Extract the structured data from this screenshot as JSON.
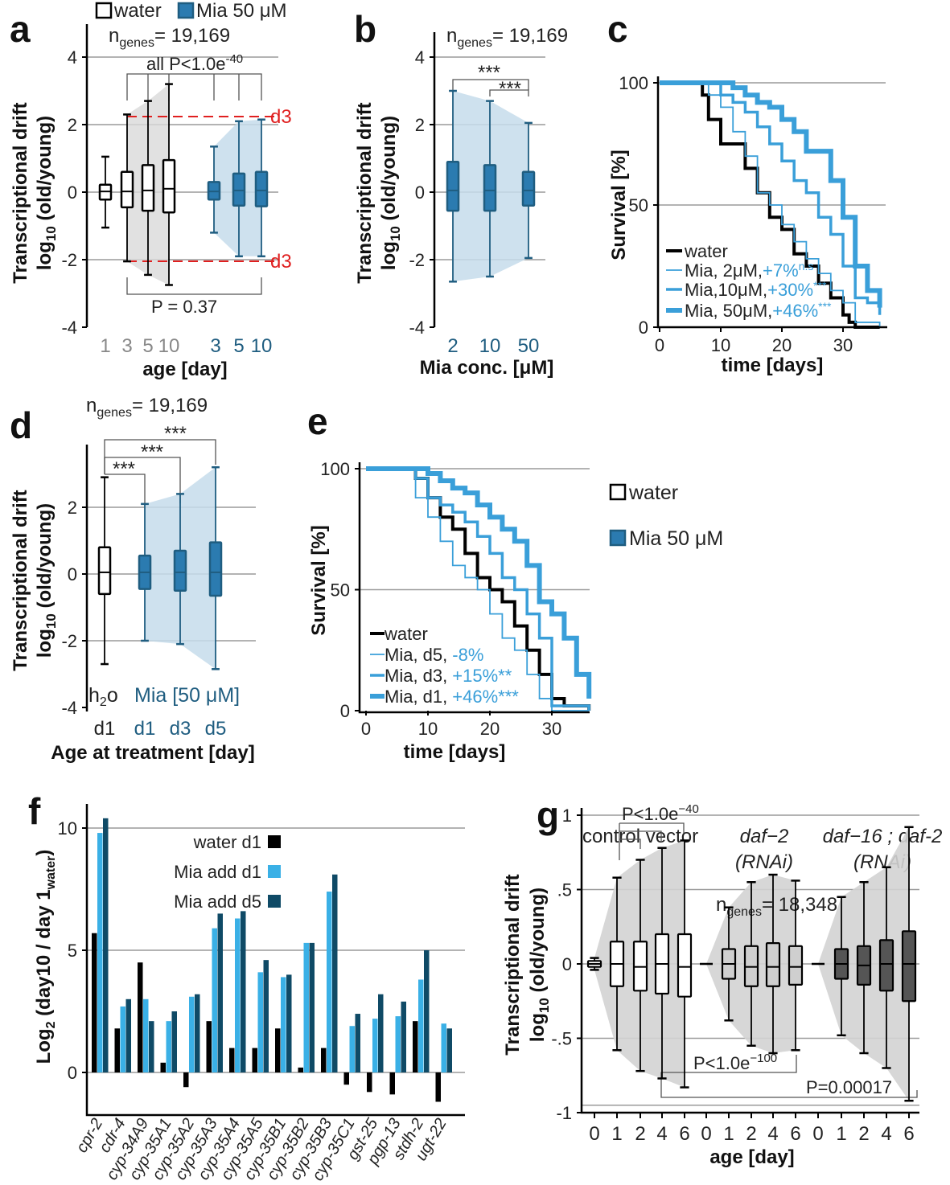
{
  "panels": {
    "a": {
      "label": "a",
      "legend": [
        "water",
        "Mia 50 μM"
      ],
      "ngenes_prefix": "n",
      "ngenes_sub": "genes",
      "ngenes_value": "= 19,169",
      "pval_top": "all P<1.0e",
      "pval_top_sup": "-40",
      "pval_bottom": "P = 0.37",
      "ref_label": "d3",
      "ylabel1": "Transcriptional drift",
      "ylabel2": "log",
      "ylabel2_sub": "10",
      "ylabel2_rest": " (old/young)",
      "xlabel": "age  [day]",
      "yticks": [
        "4",
        "2",
        "0",
        "-2",
        "-4"
      ],
      "xticks": [
        "1",
        "3",
        "5",
        "10",
        "3",
        "5",
        "10"
      ]
    },
    "b": {
      "label": "b",
      "ngenes_prefix": "n",
      "ngenes_sub": "genes",
      "ngenes_value": "= 19,169",
      "sig1": "***",
      "sig2": "***",
      "ylabel1": "Transcriptional drift",
      "ylabel2": "log",
      "ylabel2_sub": "10",
      "ylabel2_rest": " (old/young)",
      "xlabel": "Mia conc. [μM]",
      "yticks": [
        "4",
        "2",
        "0",
        "-2",
        "-4"
      ],
      "xticks": [
        "2",
        "10",
        "50"
      ]
    },
    "c": {
      "label": "c",
      "ylabel": "Survival [%]",
      "xlabel": "time [days]",
      "yticks": [
        "100",
        "50",
        "0"
      ],
      "xticks": [
        "0",
        "10",
        "20",
        "30"
      ],
      "legend": [
        {
          "name": "water",
          "stat": ""
        },
        {
          "name": "Mia, 2μM,",
          "stat": "+7%",
          "sup": "n.s"
        },
        {
          "name": "Mia,10μM,",
          "stat": "+30%",
          "sup": "***"
        },
        {
          "name": "Mia, 50μM,",
          "stat": "+46%",
          "sup": "***"
        }
      ]
    },
    "d": {
      "label": "d",
      "ngenes_prefix": "n",
      "ngenes_sub": "genes",
      "ngenes_value": "= 19,169",
      "sig": [
        "***",
        "***",
        "***"
      ],
      "ylabel1": "Transcriptional drift",
      "ylabel2": "log",
      "ylabel2_sub": "10",
      "ylabel2_rest": " (old/young)",
      "xlabel": "Age at treatment [day]",
      "yticks": [
        "2",
        "0",
        "-2",
        "-4"
      ],
      "xticks": [
        "d1",
        "d1",
        "d3",
        "d5"
      ],
      "h2o_a": "h",
      "h2o_sub": "2",
      "h2o_b": "o",
      "mia_note": "Mia [50 μM]"
    },
    "e": {
      "label": "e",
      "ylabel": "Survival [%]",
      "xlabel": "time [days]",
      "yticks": [
        "100",
        "50",
        "0"
      ],
      "xticks": [
        "0",
        "10",
        "20",
        "30"
      ],
      "legend": [
        {
          "name": "water",
          "stat": ""
        },
        {
          "name": "Mia, d5,",
          "stat": "-8%"
        },
        {
          "name": "Mia, d3,",
          "stat": "+15%**"
        },
        {
          "name": "Mia, d1,",
          "stat": "+46%***"
        }
      ],
      "side_legend": [
        "water",
        "Mia 50 μM"
      ]
    },
    "f": {
      "label": "f",
      "ylabel_a": "Log",
      "ylabel_sub": "2",
      "ylabel_b": " (day10 / day 1",
      "ylabel_sub2": "water",
      "ylabel_c": ")",
      "yticks": [
        "10",
        "5",
        "0"
      ],
      "legend": [
        "water d1",
        "Mia add d1",
        "Mia add d5"
      ]
    },
    "g": {
      "label": "g",
      "group_labels": [
        "control vector",
        "daf−2",
        "(RNAi)",
        "daf−16 ; daf-2",
        "(RNAi)"
      ],
      "ngenes_prefix": "n",
      "ngenes_sub": "genes",
      "ngenes_value": "= 18,348",
      "p1": "P<1.0e",
      "p1_sup": "−40",
      "p2": "P<1.0e",
      "p2_sup": "−100",
      "p3": "P=0.00017",
      "ylabel1": "Transcriptional drift",
      "ylabel2": "log",
      "ylabel2_sub": "10",
      "ylabel2_rest": " (old/young)",
      "xlabel": "age  [day]",
      "yticks": [
        "1",
        ".5",
        "0",
        "-.5",
        "-1"
      ],
      "xticks": [
        "0",
        "1",
        "2",
        "4",
        "6",
        "0",
        "1",
        "2",
        "4",
        "6",
        "0",
        "1",
        "2",
        "4",
        "6"
      ]
    }
  },
  "colors": {
    "water": "#ffffff",
    "mia": "#2b7bb0",
    "mia_dark": "#1f5d80",
    "light_blue": "#3a9fd9",
    "dark_teal": "#0f4a66",
    "grey_fill": "#d9d9d9",
    "blue_fill": "#c5dceb",
    "ref_red": "#e02020"
  },
  "chart_data": [
    {
      "panel": "a",
      "type": "box",
      "ylim": [
        -4,
        4
      ],
      "grid": true,
      "series": [
        {
          "name": "water",
          "categories": [
            "1",
            "3",
            "5",
            "10"
          ],
          "boxes": [
            {
              "min": -1.05,
              "q1": -0.22,
              "median": 0.02,
              "q3": 0.22,
              "max": 1.05
            },
            {
              "min": -2.05,
              "q1": -0.45,
              "median": 0.02,
              "q3": 0.6,
              "max": 2.3
            },
            {
              "min": -2.45,
              "q1": -0.55,
              "median": 0.05,
              "q3": 0.8,
              "max": 2.7
            },
            {
              "min": -2.75,
              "q1": -0.6,
              "median": 0.1,
              "q3": 0.95,
              "max": 3.2
            }
          ]
        },
        {
          "name": "Mia 50 μM",
          "categories": [
            "3",
            "5",
            "10"
          ],
          "boxes": [
            {
              "min": -1.2,
              "q1": -0.22,
              "median": 0.02,
              "q3": 0.3,
              "max": 1.35
            },
            {
              "min": -1.9,
              "q1": -0.4,
              "median": 0.05,
              "q3": 0.55,
              "max": 2.1
            },
            {
              "min": -1.9,
              "q1": -0.42,
              "median": 0.05,
              "q3": 0.6,
              "max": 2.15
            }
          ]
        }
      ]
    },
    {
      "panel": "b",
      "type": "box",
      "ylim": [
        -4,
        4
      ],
      "grid": true,
      "categories": [
        "2",
        "10",
        "50"
      ],
      "boxes": [
        {
          "min": -2.65,
          "q1": -0.55,
          "median": 0.05,
          "q3": 0.9,
          "max": 3.0
        },
        {
          "min": -2.5,
          "q1": -0.55,
          "median": 0.05,
          "q3": 0.8,
          "max": 2.7
        },
        {
          "min": -1.95,
          "q1": -0.4,
          "median": 0.05,
          "q3": 0.6,
          "max": 2.05
        }
      ]
    },
    {
      "panel": "c",
      "type": "line",
      "xlim": [
        0,
        36
      ],
      "ylim": [
        0,
        100
      ],
      "xlabel": "time [days]",
      "ylabel": "Survival [%]",
      "series": [
        {
          "name": "water",
          "x": [
            0,
            5,
            7,
            8,
            10,
            12,
            14,
            16,
            18,
            20,
            22,
            24,
            26,
            28,
            30,
            31,
            32,
            36
          ],
          "y": [
            100,
            100,
            95,
            85,
            75,
            75,
            65,
            55,
            45,
            40,
            30,
            25,
            18,
            12,
            5,
            2,
            0,
            0
          ]
        },
        {
          "name": "Mia, 2μM",
          "x": [
            0,
            6,
            8,
            10,
            12,
            14,
            16,
            18,
            20,
            22,
            24,
            26,
            28,
            30,
            32,
            36
          ],
          "y": [
            100,
            100,
            95,
            90,
            80,
            70,
            55,
            50,
            42,
            35,
            28,
            22,
            15,
            10,
            2,
            0
          ]
        },
        {
          "name": "Mia, 10μM",
          "x": [
            0,
            8,
            10,
            12,
            14,
            16,
            18,
            20,
            22,
            24,
            26,
            28,
            30,
            32,
            34,
            36
          ],
          "y": [
            100,
            100,
            95,
            92,
            88,
            82,
            75,
            68,
            60,
            55,
            45,
            38,
            25,
            12,
            10,
            5
          ]
        },
        {
          "name": "Mia, 50μM",
          "x": [
            0,
            10,
            12,
            14,
            16,
            18,
            20,
            22,
            24,
            26,
            28,
            30,
            32,
            34,
            36
          ],
          "y": [
            100,
            100,
            98,
            95,
            92,
            90,
            85,
            80,
            72,
            72,
            60,
            45,
            25,
            15,
            8
          ]
        }
      ]
    },
    {
      "panel": "d",
      "type": "box",
      "ylim": [
        -4,
        3.5
      ],
      "grid": true,
      "categories": [
        "h2o d1",
        "Mia d1",
        "Mia d3",
        "Mia d5"
      ],
      "boxes": [
        {
          "min": -2.7,
          "q1": -0.6,
          "median": 0.05,
          "q3": 0.8,
          "max": 2.9
        },
        {
          "min": -2.0,
          "q1": -0.45,
          "median": 0.05,
          "q3": 0.55,
          "max": 2.1
        },
        {
          "min": -2.1,
          "q1": -0.5,
          "median": 0.05,
          "q3": 0.7,
          "max": 2.4
        },
        {
          "min": -2.85,
          "q1": -0.65,
          "median": 0.05,
          "q3": 0.95,
          "max": 3.2
        }
      ]
    },
    {
      "panel": "e",
      "type": "line",
      "xlim": [
        0,
        36
      ],
      "ylim": [
        0,
        100
      ],
      "xlabel": "time [days]",
      "ylabel": "Survival [%]",
      "series": [
        {
          "name": "water",
          "x": [
            0,
            6,
            8,
            10,
            12,
            14,
            16,
            18,
            20,
            22,
            24,
            26,
            28,
            30,
            32,
            36
          ],
          "y": [
            100,
            100,
            96,
            88,
            80,
            75,
            65,
            55,
            50,
            45,
            35,
            25,
            15,
            5,
            2,
            0
          ]
        },
        {
          "name": "Mia, d5",
          "x": [
            0,
            6,
            8,
            10,
            12,
            14,
            16,
            18,
            20,
            22,
            24,
            26,
            28,
            30,
            36
          ],
          "y": [
            100,
            100,
            88,
            80,
            70,
            60,
            55,
            50,
            40,
            30,
            25,
            15,
            5,
            0,
            0
          ]
        },
        {
          "name": "Mia, d3",
          "x": [
            0,
            6,
            8,
            10,
            12,
            14,
            16,
            18,
            20,
            22,
            24,
            26,
            28,
            30,
            36
          ],
          "y": [
            100,
            100,
            96,
            88,
            85,
            82,
            78,
            72,
            65,
            55,
            50,
            40,
            30,
            2,
            0
          ]
        },
        {
          "name": "Mia, d1",
          "x": [
            0,
            8,
            10,
            12,
            14,
            16,
            18,
            20,
            22,
            24,
            26,
            28,
            30,
            32,
            34,
            36
          ],
          "y": [
            100,
            100,
            98,
            95,
            92,
            90,
            85,
            80,
            75,
            70,
            60,
            45,
            40,
            30,
            15,
            5
          ]
        }
      ]
    },
    {
      "panel": "f",
      "type": "bar",
      "ylim": [
        -2,
        10.5
      ],
      "grid": true,
      "categories": [
        "cpr-2",
        "cdr-4",
        "cyp-34A9",
        "cyp-35A1",
        "cyp-35A2",
        "cyp-35A3",
        "cyp-35A4",
        "cyp-35A5",
        "cyp-35B1",
        "cyp-35B2",
        "cyp-35B3",
        "cyp-35C1",
        "gst-25",
        "pgp-13",
        "stdh-2",
        "ugt-22"
      ],
      "series": [
        {
          "name": "water d1",
          "values": [
            5.7,
            1.8,
            4.5,
            0.4,
            -0.6,
            2.1,
            1.0,
            1.0,
            1.8,
            0.2,
            1.0,
            -0.5,
            -0.8,
            -0.9,
            2.1,
            -1.2
          ]
        },
        {
          "name": "Mia add d1",
          "values": [
            9.8,
            2.7,
            3.0,
            2.1,
            3.1,
            5.9,
            6.3,
            4.1,
            3.9,
            5.3,
            7.4,
            1.9,
            2.2,
            2.3,
            3.8,
            2.0
          ]
        },
        {
          "name": "Mia add d5",
          "values": [
            10.4,
            3.0,
            2.1,
            2.5,
            3.2,
            6.5,
            6.6,
            4.6,
            4.0,
            5.3,
            8.1,
            2.4,
            3.2,
            2.9,
            5.0,
            1.8
          ]
        }
      ]
    },
    {
      "panel": "g",
      "type": "box",
      "ylim": [
        -1.1,
        1.1
      ],
      "grid": true,
      "series": [
        {
          "name": "control vector",
          "categories": [
            "0",
            "1",
            "2",
            "4",
            "6"
          ],
          "boxes": [
            {
              "min": -0.04,
              "q1": -0.02,
              "median": 0.0,
              "q3": 0.02,
              "max": 0.04
            },
            {
              "min": -0.58,
              "q1": -0.15,
              "median": 0.0,
              "q3": 0.15,
              "max": 0.58
            },
            {
              "min": -0.72,
              "q1": -0.18,
              "median": -0.02,
              "q3": 0.15,
              "max": 0.7
            },
            {
              "min": -0.77,
              "q1": -0.2,
              "median": 0.0,
              "q3": 0.2,
              "max": 0.78
            },
            {
              "min": -0.83,
              "q1": -0.22,
              "median": -0.02,
              "q3": 0.2,
              "max": 0.83
            }
          ]
        },
        {
          "name": "daf-2 (RNAi)",
          "categories": [
            "0",
            "1",
            "2",
            "4",
            "6"
          ],
          "boxes": [
            {
              "min": 0.0,
              "q1": 0.0,
              "median": 0.0,
              "q3": 0.0,
              "max": 0.0
            },
            {
              "min": -0.38,
              "q1": -0.1,
              "median": 0.0,
              "q3": 0.1,
              "max": 0.38
            },
            {
              "min": -0.55,
              "q1": -0.15,
              "median": -0.02,
              "q3": 0.12,
              "max": 0.55
            },
            {
              "min": -0.6,
              "q1": -0.15,
              "median": -0.02,
              "q3": 0.14,
              "max": 0.6
            },
            {
              "min": -0.58,
              "q1": -0.14,
              "median": -0.02,
              "q3": 0.12,
              "max": 0.56
            }
          ]
        },
        {
          "name": "daf-16 ; daf-2 (RNAi)",
          "categories": [
            "0",
            "1",
            "2",
            "4",
            "6"
          ],
          "boxes": [
            {
              "min": 0.0,
              "q1": 0.0,
              "median": 0.0,
              "q3": 0.0,
              "max": 0.0
            },
            {
              "min": -0.48,
              "q1": -0.1,
              "median": 0.0,
              "q3": 0.1,
              "max": 0.45
            },
            {
              "min": -0.6,
              "q1": -0.14,
              "median": -0.01,
              "q3": 0.12,
              "max": 0.55
            },
            {
              "min": -0.7,
              "q1": -0.18,
              "median": 0.0,
              "q3": 0.16,
              "max": 0.65
            },
            {
              "min": -0.92,
              "q1": -0.25,
              "median": 0.0,
              "q3": 0.22,
              "max": 0.92
            }
          ]
        }
      ]
    }
  ]
}
